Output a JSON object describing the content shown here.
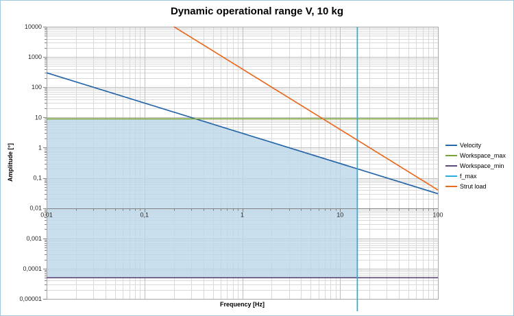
{
  "chart_data": {
    "type": "line",
    "title": "Dynamic operational range V, 10 kg",
    "xlabel": "Frequency [Hz]",
    "ylabel": "Amplitude [°]",
    "x_scale": "log",
    "y_scale": "log",
    "xlim": [
      0.01,
      100
    ],
    "ylim": [
      1e-05,
      10000
    ],
    "x_axis_crosses_at_y": 0.01,
    "x_ticks": [
      {
        "v": 0.01,
        "label": "0,01"
      },
      {
        "v": 0.1,
        "label": "0,1"
      },
      {
        "v": 1,
        "label": "1"
      },
      {
        "v": 10,
        "label": "10"
      },
      {
        "v": 100,
        "label": "100"
      }
    ],
    "y_ticks": [
      {
        "v": 10000,
        "label": "10000"
      },
      {
        "v": 1000,
        "label": "1000"
      },
      {
        "v": 100,
        "label": "100"
      },
      {
        "v": 10,
        "label": "10"
      },
      {
        "v": 1,
        "label": "1"
      },
      {
        "v": 0.1,
        "label": "0,1"
      },
      {
        "v": 0.01,
        "label": "0,01"
      },
      {
        "v": 0.001,
        "label": "0,001"
      },
      {
        "v": 0.0001,
        "label": "0,0001"
      },
      {
        "v": 1e-05,
        "label": "0,00001"
      }
    ],
    "grid": {
      "minor_color": "#D9D9D9",
      "major_color": "#BFBFBF",
      "axis_color": "#7F7F7F",
      "border_color": "#A6A6A6"
    },
    "series": [
      {
        "name": "Velocity",
        "color": "#2565A8",
        "points": [
          [
            0.01,
            300
          ],
          [
            100,
            0.03
          ]
        ]
      },
      {
        "name": "Workspace_max",
        "color": "#79A23B",
        "points": [
          [
            0.01,
            9
          ],
          [
            100,
            9
          ]
        ]
      },
      {
        "name": "Workspace_min",
        "color": "#5F497A",
        "points": [
          [
            0.01,
            5e-05
          ],
          [
            100,
            5e-05
          ]
        ]
      },
      {
        "name": "f_max",
        "color": "#29ABDC",
        "points": [
          [
            15,
            10000
          ],
          [
            15,
            1e-05
          ]
        ]
      },
      {
        "name": "Strut load",
        "color": "#E96A20",
        "points": [
          [
            0.2,
            10000
          ],
          [
            100,
            0.04
          ]
        ]
      }
    ],
    "shaded_region": {
      "name": "dynamic operational range",
      "fill": "#BCD7E8",
      "opacity": 0.8,
      "points": [
        [
          0.01,
          5e-05
        ],
        [
          0.01,
          9
        ],
        [
          0.3333,
          9
        ],
        [
          15,
          0.2
        ],
        [
          15,
          5e-05
        ]
      ]
    },
    "legend": {
      "position": "right",
      "items": [
        "Velocity",
        "Workspace_max",
        "Workspace_min",
        "f_max",
        "Strut load"
      ]
    }
  }
}
